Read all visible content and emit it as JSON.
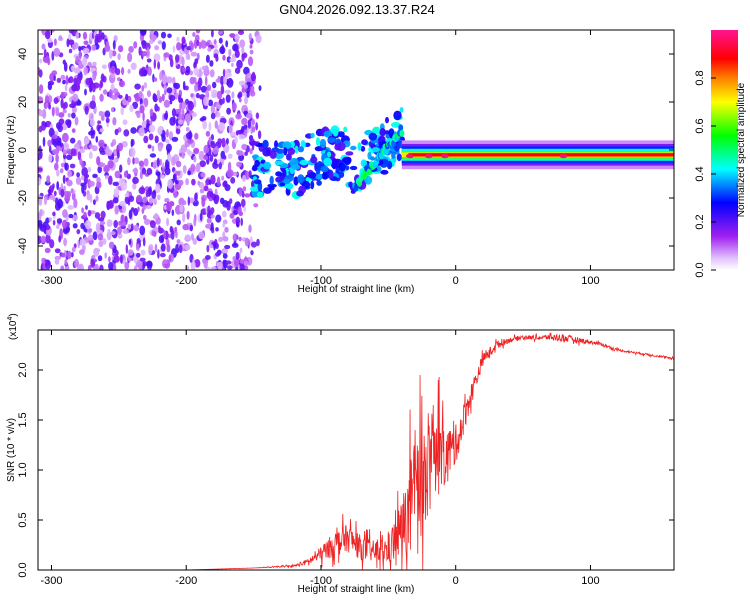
{
  "title": "GN04.2026.092.13.37.R24",
  "chart_data": [
    {
      "type": "heatmap",
      "xlabel": "Height of straight line (km)",
      "ylabel": "Frequency (Hz)",
      "xlim": [
        -310,
        162
      ],
      "ylim": [
        -50,
        50
      ],
      "xticks": [
        -300,
        -200,
        -100,
        0,
        100
      ],
      "xtick_labels": [
        "-300",
        "-200",
        "-100",
        "0",
        "100"
      ],
      "yticks": [
        -40,
        -20,
        0,
        20,
        40
      ],
      "ytick_labels": [
        "-40",
        "-20",
        "0",
        "20",
        "40"
      ],
      "colorbar": {
        "label": "Normalized spectral amplitude",
        "range": [
          0,
          1
        ],
        "ticks": [
          0.0,
          0.2,
          0.4,
          0.6,
          0.8
        ],
        "tick_labels": [
          "0.0",
          "0.2",
          "0.4",
          "0.6",
          "0.8"
        ],
        "colors": [
          "#ffffff",
          "#a020f0",
          "#0000ff",
          "#00ffff",
          "#00ff00",
          "#ffff00",
          "#ff7f00",
          "#ff0000",
          "#ff00ff"
        ]
      },
      "features": [
        {
          "name": "noise-region",
          "x_range": [
            -310,
            -150
          ],
          "amplitude": 0.1
        },
        {
          "name": "scatter-region",
          "x_range": [
            -150,
            -40
          ],
          "amplitude": 0.3
        },
        {
          "name": "signal-tone",
          "x_range": [
            -40,
            162
          ],
          "freq_hz": -2,
          "amplitude": 0.95
        }
      ]
    },
    {
      "type": "line",
      "xlabel": "Height of straight line (km)",
      "ylabel": "SNR (10 * v/v)",
      "scale_label": "(x10",
      "scale_exp": "4",
      "scale_close": ")",
      "xlim": [
        -310,
        162
      ],
      "ylim": [
        0,
        2.4
      ],
      "xticks": [
        -300,
        -200,
        -100,
        0,
        100
      ],
      "xtick_labels": [
        "-300",
        "-200",
        "-100",
        "0",
        "100"
      ],
      "yticks": [
        0.0,
        0.5,
        1.0,
        1.5,
        2.0
      ],
      "ytick_labels": [
        "0.0",
        "0.5",
        "1.0",
        "1.5",
        "2.0"
      ],
      "series": [
        {
          "name": "SNR",
          "color": "#ee2222",
          "x": [
            -310,
            -250,
            -200,
            -150,
            -120,
            -110,
            -100,
            -90,
            -80,
            -70,
            -60,
            -50,
            -40,
            -30,
            -20,
            -10,
            0,
            10,
            20,
            30,
            40,
            50,
            60,
            70,
            80,
            90,
            100,
            110,
            120,
            130,
            140,
            150,
            162
          ],
          "values": [
            0.0,
            0.0,
            0.0,
            0.02,
            0.04,
            0.08,
            0.16,
            0.26,
            0.32,
            0.22,
            0.18,
            0.2,
            0.42,
            0.7,
            1.0,
            1.1,
            1.25,
            1.7,
            2.1,
            2.25,
            2.3,
            2.33,
            2.32,
            2.33,
            2.32,
            2.3,
            2.28,
            2.25,
            2.2,
            2.18,
            2.16,
            2.14,
            2.11
          ],
          "noise_amplitude": [
            0.0,
            0.0,
            0.0,
            0.0,
            0.02,
            0.06,
            0.15,
            0.25,
            0.28,
            0.25,
            0.22,
            0.3,
            0.6,
            1.3,
            0.9,
            0.6,
            0.4,
            0.25,
            0.12,
            0.08,
            0.05,
            0.04,
            0.04,
            0.06,
            0.08,
            0.06,
            0.04,
            0.03,
            0.02,
            0.02,
            0.02,
            0.02,
            0.02
          ]
        }
      ]
    }
  ]
}
